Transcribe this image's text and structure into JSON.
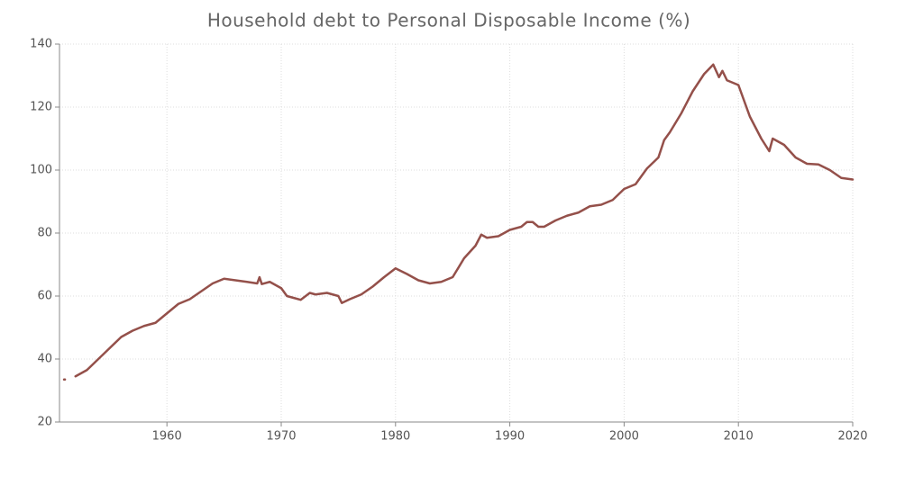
{
  "chart_data": {
    "type": "line",
    "title": "Household debt to Personal Disposable Income (%)",
    "x": [
      1951.0,
      1951.5,
      1952,
      1953,
      1954,
      1955,
      1956,
      1957,
      1958,
      1959,
      1960,
      1961,
      1962,
      1963,
      1964,
      1965,
      1966,
      1967,
      1967.9,
      1968.1,
      1968.3,
      1969,
      1970,
      1970.5,
      1971,
      1971.7,
      1972.5,
      1973,
      1974,
      1975,
      1975.3,
      1976,
      1977,
      1978,
      1979,
      1980,
      1981,
      1982,
      1983,
      1984,
      1985,
      1986,
      1987,
      1987.5,
      1988,
      1989,
      1990,
      1991,
      1991.5,
      1992,
      1992.5,
      1993,
      1994,
      1995,
      1996,
      1997,
      1998,
      1999,
      2000,
      2001,
      2002,
      2003,
      2003.5,
      2004,
      2005,
      2006,
      2007,
      2007.8,
      2008.3,
      2008.6,
      2009,
      2010,
      2011,
      2012,
      2012.7,
      2013,
      2014,
      2015,
      2016,
      2017,
      2018,
      2019,
      2020
    ],
    "series": [
      {
        "name": "Household debt to Personal Disposable Income",
        "color": "#94504a",
        "values": [
          33.5,
          null,
          34.5,
          36.5,
          40,
          43.5,
          47,
          49,
          50.5,
          51.5,
          54.5,
          57.5,
          59,
          61.5,
          64,
          65.5,
          65,
          64.5,
          64,
          66,
          63.8,
          64.5,
          62.5,
          60,
          59.5,
          58.8,
          61,
          60.5,
          61,
          60,
          57.8,
          59,
          60.5,
          63,
          66,
          68.8,
          67,
          65,
          64,
          64.5,
          66,
          72,
          76,
          79.5,
          78.5,
          79,
          81,
          82,
          83.5,
          83.5,
          82,
          82,
          84,
          85.5,
          86.5,
          88.5,
          89,
          90.5,
          94,
          95.5,
          100.5,
          104,
          109.5,
          112,
          118,
          125,
          130.5,
          133.5,
          129.5,
          131.5,
          128.5,
          127,
          117,
          110,
          106,
          110,
          108,
          104,
          102,
          101.8,
          100,
          97.5,
          97
        ]
      }
    ],
    "xlim": [
      1950.6,
      2020
    ],
    "xticks": [
      1960,
      1970,
      1980,
      1990,
      2000,
      2010,
      2020
    ],
    "ylim": [
      20,
      140
    ],
    "yticks": [
      20,
      40,
      60,
      80,
      100,
      120,
      140
    ],
    "grid": true
  }
}
